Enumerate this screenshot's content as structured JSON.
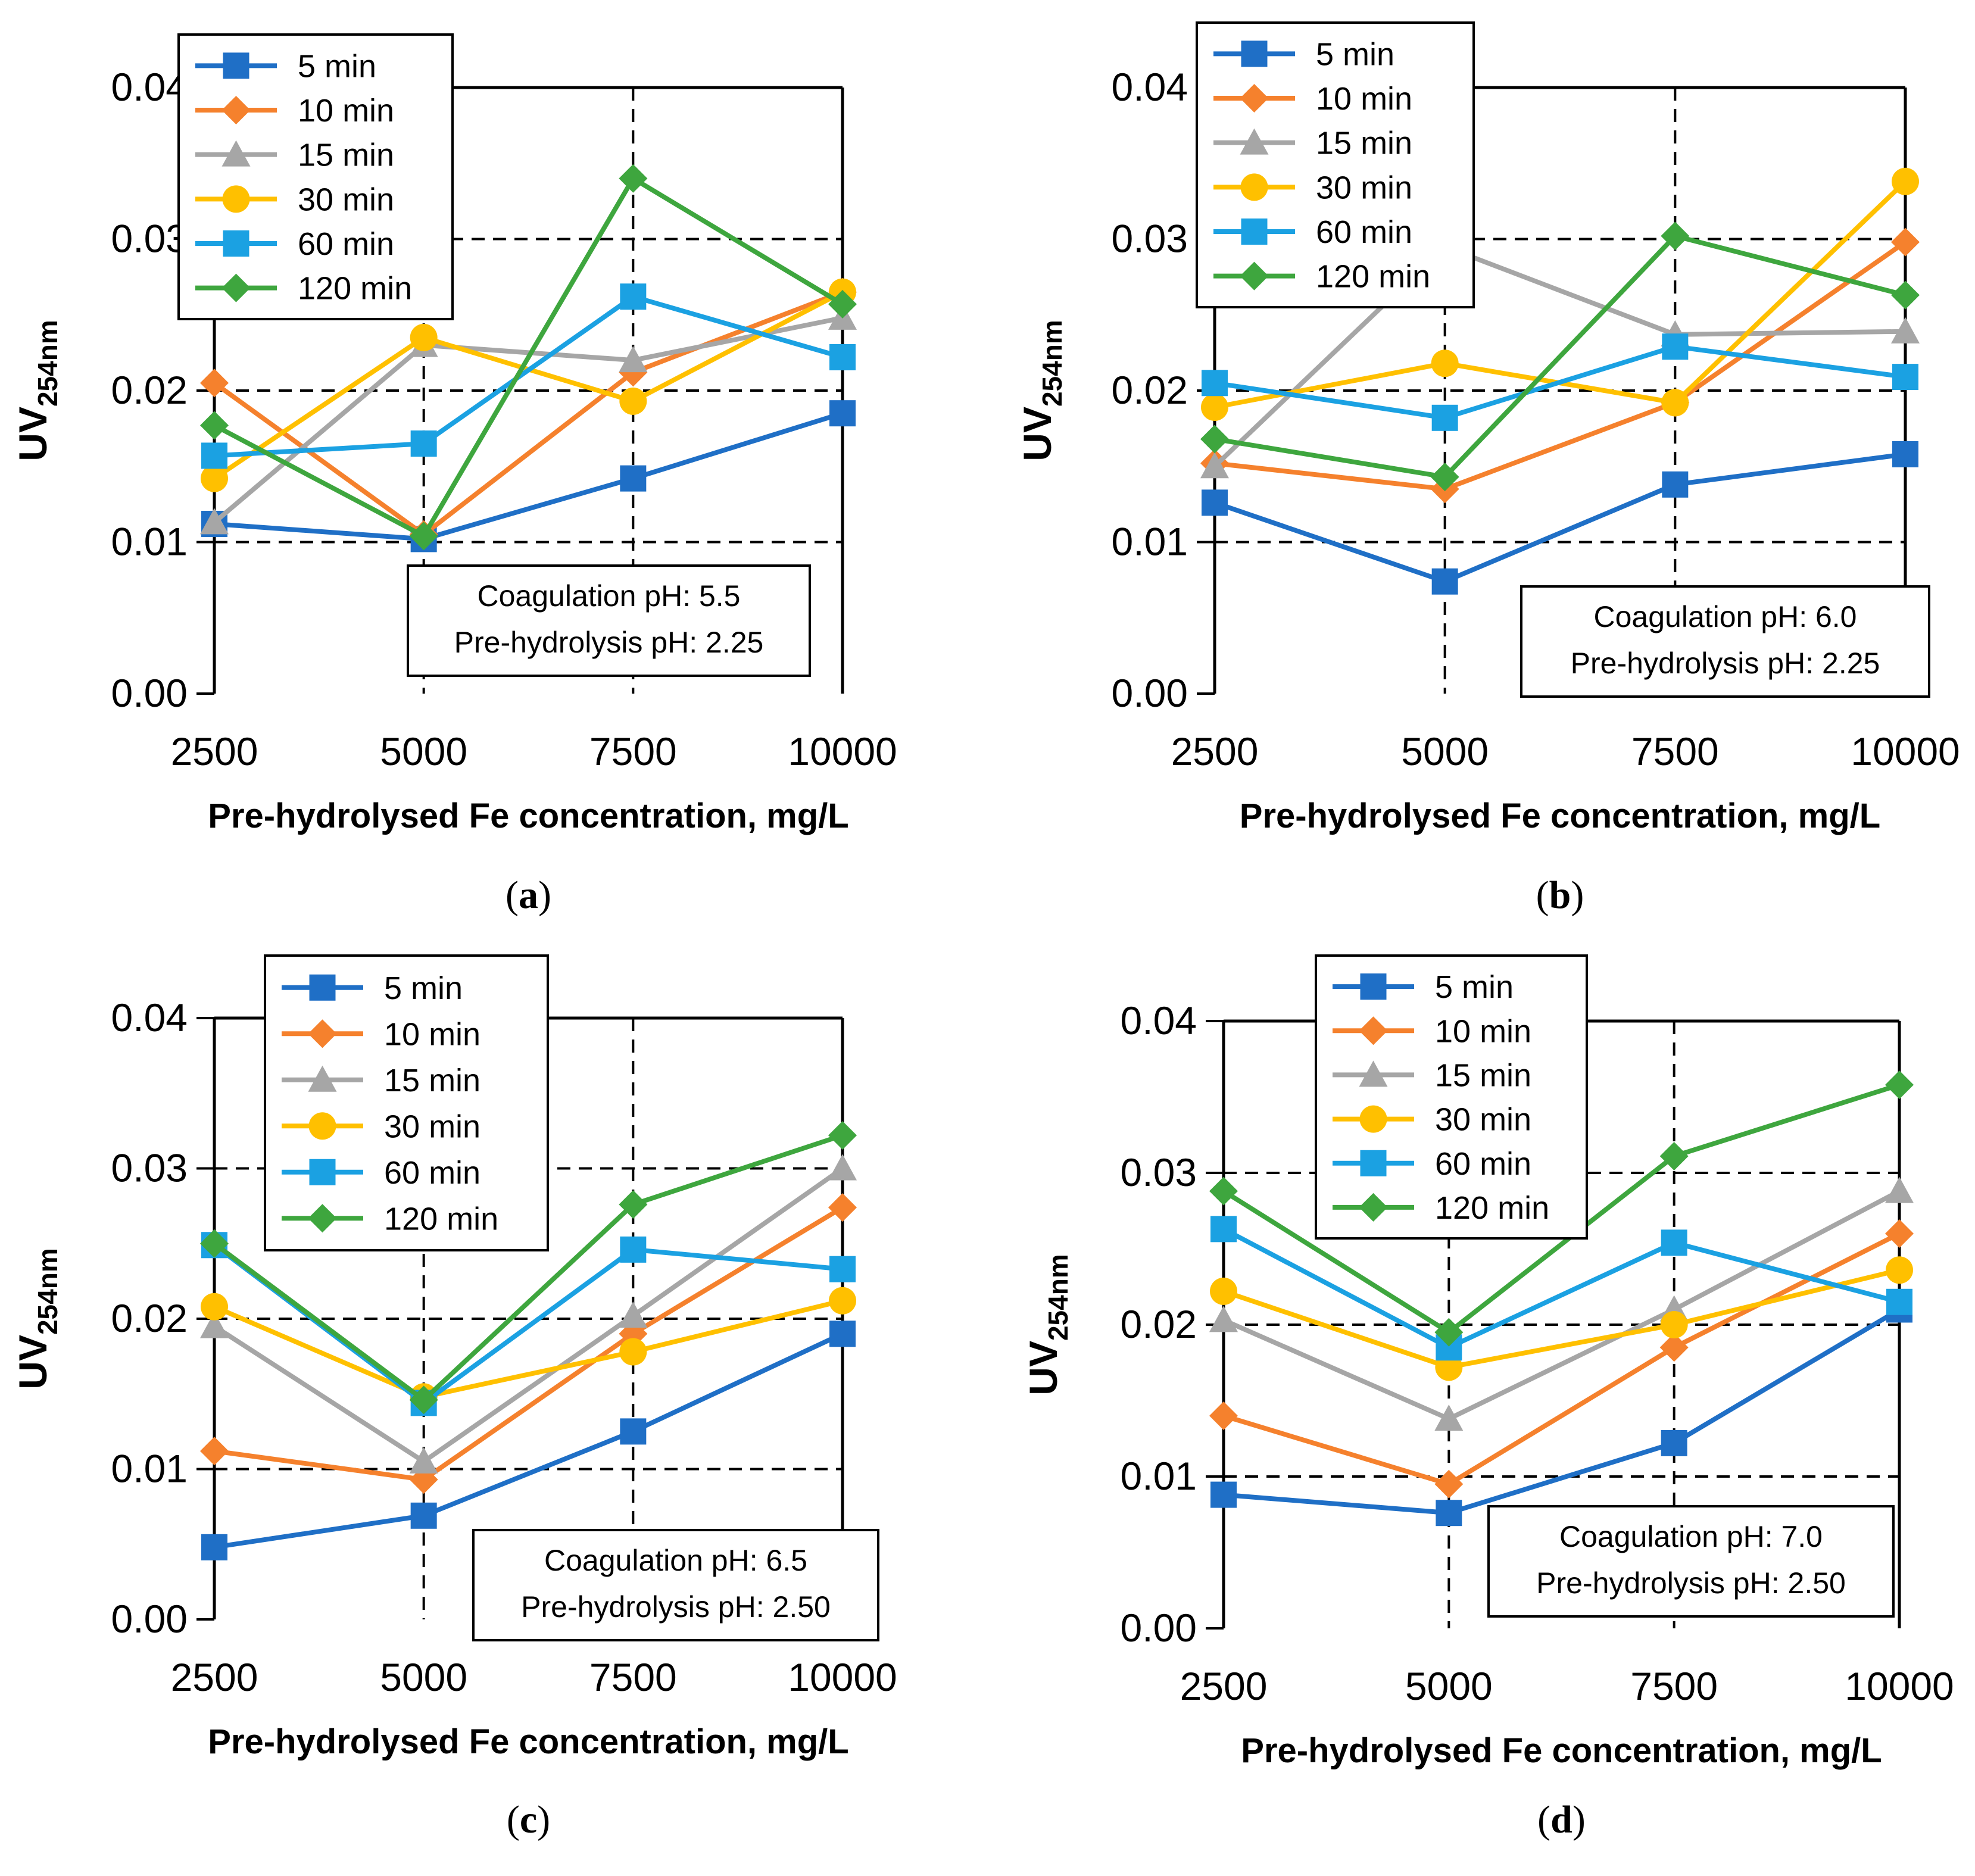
{
  "colors": {
    "5 min": "#1F6FC6",
    "10 min": "#F5812D",
    "15 min": "#A6A6A6",
    "30 min": "#FFC000",
    "60 min": "#1BA1E2",
    "120 min": "#3EA63E"
  },
  "chart_data": [
    {
      "type": "line",
      "panel": "a",
      "caption": {
        "open": "(",
        "letter": "a",
        "close": ")"
      },
      "xlabel": "Pre-hydrolysed Fe concentration, mg/L",
      "ylabel": {
        "main": "UV",
        "sub": "254nm"
      },
      "categories": [
        "2500",
        "5000",
        "7500",
        "10000"
      ],
      "x": [
        2500,
        5000,
        7500,
        10000
      ],
      "ylim": [
        0,
        0.04
      ],
      "yticks": [
        "0.00",
        "0.01",
        "0.02",
        "0.03",
        "0.04"
      ],
      "annotation": [
        "Coagulation pH: 5.5",
        "Pre-hydrolysis pH: 2.25"
      ],
      "series": [
        {
          "name": "5 min",
          "marker": "square",
          "values": [
            0.0112,
            0.0102,
            0.0142,
            0.0185
          ]
        },
        {
          "name": "10 min",
          "marker": "diamond",
          "values": [
            0.0205,
            0.0105,
            0.0212,
            0.0265
          ]
        },
        {
          "name": "15 min",
          "marker": "triangle",
          "values": [
            0.0113,
            0.023,
            0.022,
            0.0248
          ]
        },
        {
          "name": "30 min",
          "marker": "circle",
          "values": [
            0.0142,
            0.0235,
            0.0193,
            0.0265
          ]
        },
        {
          "name": "60 min",
          "marker": "square",
          "values": [
            0.0157,
            0.0165,
            0.0262,
            0.0222
          ]
        },
        {
          "name": "120 min",
          "marker": "diamond",
          "values": [
            0.0177,
            0.0104,
            0.034,
            0.0257
          ]
        }
      ]
    },
    {
      "type": "line",
      "panel": "b",
      "caption": {
        "open": "(",
        "letter": "b",
        "close": ")"
      },
      "xlabel": "Pre-hydrolysed Fe concentration, mg/L",
      "ylabel": {
        "main": "UV",
        "sub": "254nm"
      },
      "categories": [
        "2500",
        "5000",
        "7500",
        "10000"
      ],
      "x": [
        2500,
        5000,
        7500,
        10000
      ],
      "ylim": [
        0,
        0.04
      ],
      "yticks": [
        "0.00",
        "0.01",
        "0.02",
        "0.03",
        "0.04"
      ],
      "annotation": [
        "Coagulation pH: 6.0",
        "Pre-hydrolysis pH: 2.25"
      ],
      "series": [
        {
          "name": "5 min",
          "marker": "square",
          "values": [
            0.0126,
            0.0074,
            0.0138,
            0.0158
          ]
        },
        {
          "name": "10 min",
          "marker": "diamond",
          "values": [
            0.0152,
            0.0135,
            0.0192,
            0.0298
          ]
        },
        {
          "name": "15 min",
          "marker": "triangle",
          "values": [
            0.015,
            0.0295,
            0.0237,
            0.0239
          ]
        },
        {
          "name": "30 min",
          "marker": "circle",
          "values": [
            0.0189,
            0.0218,
            0.0192,
            0.0338
          ]
        },
        {
          "name": "60 min",
          "marker": "square",
          "values": [
            0.0205,
            0.0182,
            0.0229,
            0.0209
          ]
        },
        {
          "name": "120 min",
          "marker": "diamond",
          "values": [
            0.0168,
            0.0143,
            0.0302,
            0.0263
          ]
        }
      ]
    },
    {
      "type": "line",
      "panel": "c",
      "caption": {
        "open": "(",
        "letter": "c",
        "close": ")"
      },
      "xlabel": "Pre-hydrolysed Fe concentration, mg/L",
      "ylabel": {
        "main": "UV",
        "sub": "254nm"
      },
      "categories": [
        "2500",
        "5000",
        "7500",
        "10000"
      ],
      "x": [
        2500,
        5000,
        7500,
        10000
      ],
      "ylim": [
        0,
        0.04
      ],
      "yticks": [
        "0.00",
        "0.01",
        "0.02",
        "0.03",
        "0.04"
      ],
      "annotation": [
        "Coagulation pH: 6.5",
        "Pre-hydrolysis pH: 2.50"
      ],
      "series": [
        {
          "name": "5 min",
          "marker": "square",
          "values": [
            0.0048,
            0.0069,
            0.0125,
            0.019
          ]
        },
        {
          "name": "10 min",
          "marker": "diamond",
          "values": [
            0.0112,
            0.0093,
            0.019,
            0.0274
          ]
        },
        {
          "name": "15 min",
          "marker": "triangle",
          "values": [
            0.0195,
            0.0105,
            0.0202,
            0.03
          ]
        },
        {
          "name": "30 min",
          "marker": "circle",
          "values": [
            0.0208,
            0.0148,
            0.0178,
            0.0212
          ]
        },
        {
          "name": "60 min",
          "marker": "square",
          "values": [
            0.0249,
            0.0144,
            0.0246,
            0.0233
          ]
        },
        {
          "name": "120 min",
          "marker": "diamond",
          "values": [
            0.025,
            0.0146,
            0.0276,
            0.0322
          ]
        }
      ]
    },
    {
      "type": "line",
      "panel": "d",
      "caption": {
        "open": "(",
        "letter": "d",
        "close": ")"
      },
      "xlabel": "Pre-hydrolysed Fe concentration, mg/L",
      "ylabel": {
        "main": "UV",
        "sub": "254nm"
      },
      "categories": [
        "2500",
        "5000",
        "7500",
        "10000"
      ],
      "x": [
        2500,
        5000,
        7500,
        10000
      ],
      "ylim": [
        0,
        0.04
      ],
      "yticks": [
        "0.00",
        "0.01",
        "0.02",
        "0.03",
        "0.04"
      ],
      "annotation": [
        "Coagulation pH: 7.0",
        "Pre-hydrolysis pH: 2.50"
      ],
      "series": [
        {
          "name": "5 min",
          "marker": "square",
          "values": [
            0.0088,
            0.0076,
            0.0122,
            0.021
          ]
        },
        {
          "name": "10 min",
          "marker": "diamond",
          "values": [
            0.014,
            0.0095,
            0.0185,
            0.026
          ]
        },
        {
          "name": "15 min",
          "marker": "triangle",
          "values": [
            0.0203,
            0.0138,
            0.021,
            0.0288
          ]
        },
        {
          "name": "30 min",
          "marker": "circle",
          "values": [
            0.0222,
            0.0172,
            0.02,
            0.0236
          ]
        },
        {
          "name": "60 min",
          "marker": "square",
          "values": [
            0.0263,
            0.0185,
            0.0254,
            0.0215
          ]
        },
        {
          "name": "120 min",
          "marker": "diamond",
          "values": [
            0.0288,
            0.0195,
            0.0311,
            0.0358
          ]
        }
      ]
    }
  ]
}
